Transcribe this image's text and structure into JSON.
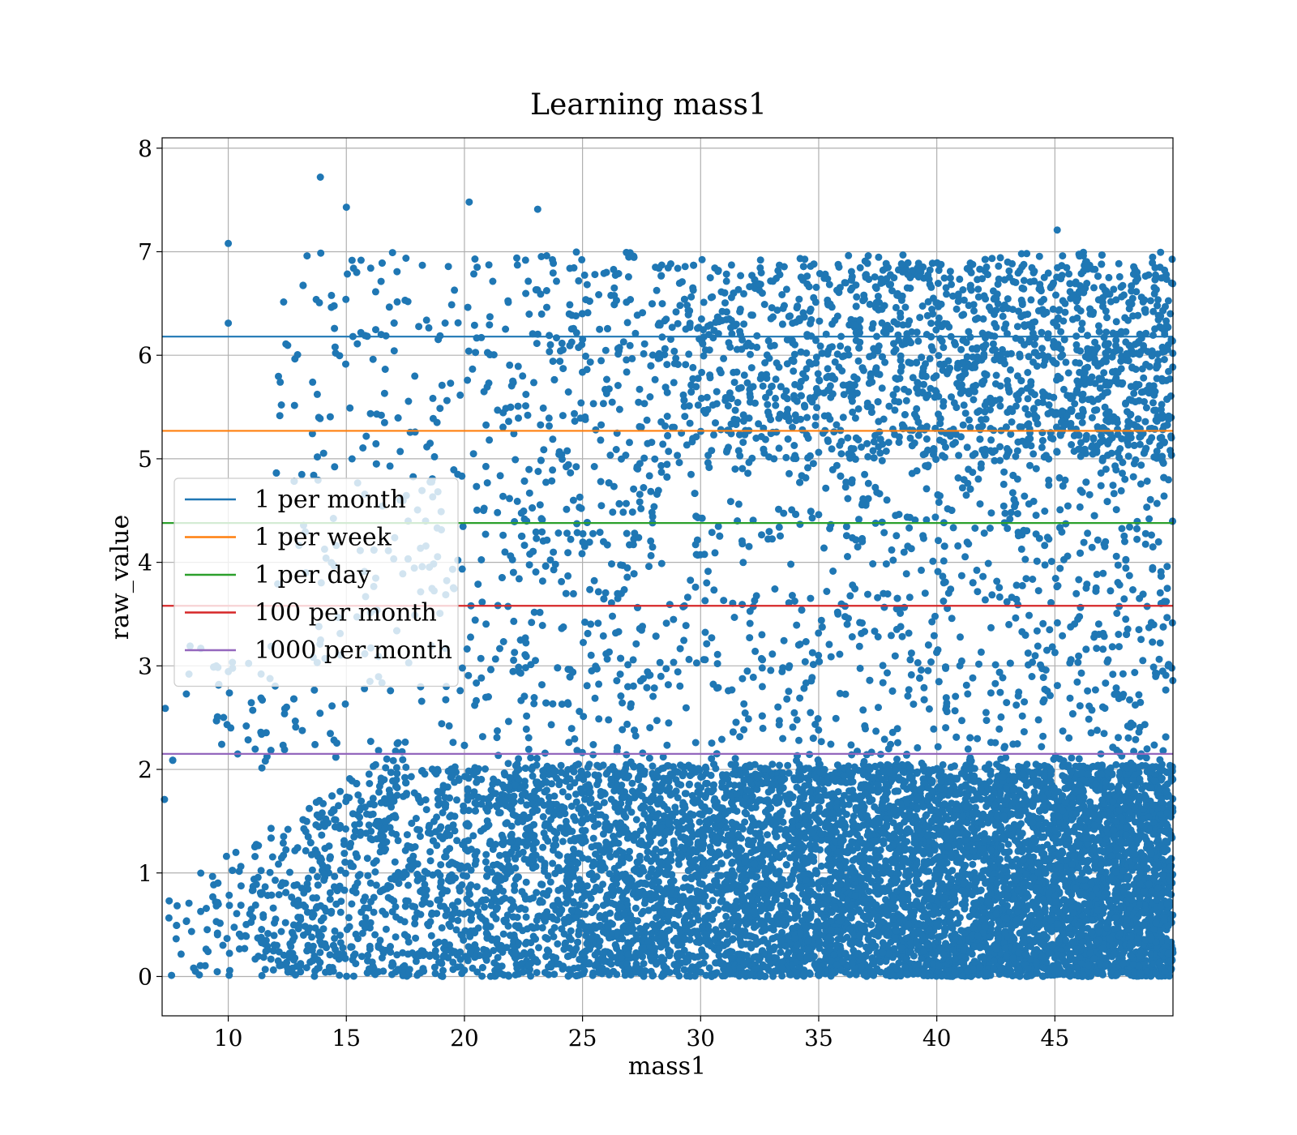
{
  "chart_data": {
    "type": "scatter",
    "title": "Learning mass1",
    "xlabel": "mass1",
    "ylabel": "raw_value",
    "xlim": [
      7.2,
      50.0
    ],
    "ylim": [
      -0.38,
      8.1
    ],
    "xticks": [
      10,
      15,
      20,
      25,
      30,
      35,
      40,
      45
    ],
    "yticks": [
      0,
      1,
      2,
      3,
      4,
      5,
      6,
      7,
      8
    ],
    "grid": true,
    "legend_position": "center-left",
    "point_color": "#1f77b4",
    "scatter_series": {
      "name": "",
      "x_range": [
        7.2,
        50.0
      ],
      "y_range": [
        0.0,
        7.7
      ],
      "density": "points increase in density with mass1; dense band below y=2, sparser points between 2 and 7",
      "sample_points": [
        {
          "x": 10.0,
          "y": 7.08
        },
        {
          "x": 13.9,
          "y": 7.72
        },
        {
          "x": 15.0,
          "y": 7.43
        },
        {
          "x": 20.2,
          "y": 7.48
        },
        {
          "x": 23.1,
          "y": 7.41
        },
        {
          "x": 45.1,
          "y": 7.21
        },
        {
          "x": 10.0,
          "y": 6.31
        },
        {
          "x": 12.2,
          "y": 5.74
        },
        {
          "x": 7.3,
          "y": 1.71
        },
        {
          "x": 7.5,
          "y": 0.73
        }
      ]
    },
    "lines": [
      {
        "name": "1 per month",
        "y": 6.18,
        "color": "#1f77b4"
      },
      {
        "name": "1 per week",
        "y": 5.27,
        "color": "#ff7f0e"
      },
      {
        "name": "1 per day",
        "y": 4.38,
        "color": "#2ca02c"
      },
      {
        "name": "100 per month",
        "y": 3.58,
        "color": "#d62728"
      },
      {
        "name": "1000 per month",
        "y": 2.15,
        "color": "#9467bd"
      }
    ]
  }
}
